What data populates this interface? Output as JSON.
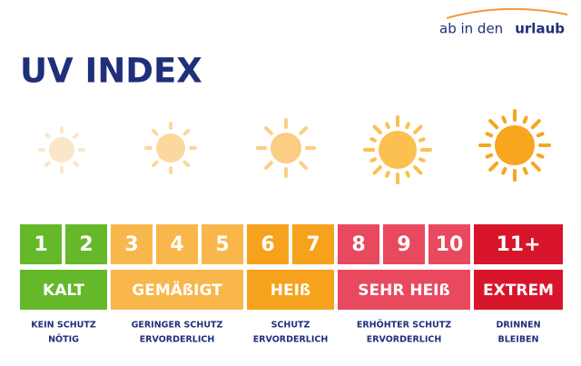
{
  "header": {
    "logo": {
      "prefix": "ab in den",
      "suffix": "urlaub"
    },
    "title": "UV INDEX"
  },
  "levels": [
    {
      "numbers": [
        "1",
        "2"
      ],
      "label": "KALT",
      "description": [
        "KEIN SCHUTZ",
        "NÖTIG"
      ],
      "color": "#65b82a"
    },
    {
      "numbers": [
        "3",
        "4",
        "5"
      ],
      "label": "GEMÄßIGT",
      "description": [
        "GERINGER SCHUTZ",
        "ERVORDERLICH"
      ],
      "color": "#f9b64a"
    },
    {
      "numbers": [
        "6",
        "7"
      ],
      "label": "HEIß",
      "description": [
        "SCHUTZ",
        "ERVORDERLICH"
      ],
      "color": "#f7a21c"
    },
    {
      "numbers": [
        "8",
        "9",
        "10"
      ],
      "label": "SEHR HEIß",
      "description": [
        "ERHÖHTER SCHUTZ",
        "ERVORDERLICH"
      ],
      "color": "#e8495e"
    },
    {
      "numbers": [
        "11+"
      ],
      "label": "EXTREM",
      "description": [
        "DRINNEN",
        "BLEIBEN"
      ],
      "color": "#d8152b"
    }
  ]
}
